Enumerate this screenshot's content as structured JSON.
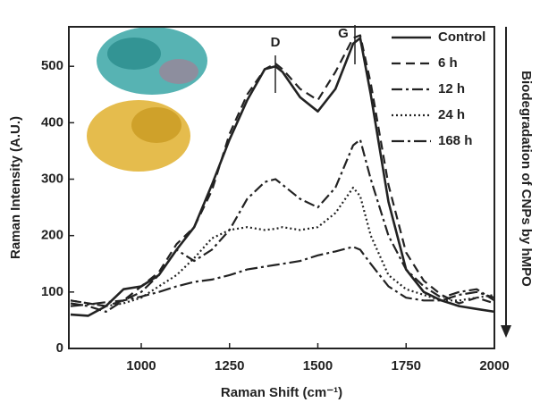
{
  "chart_data": {
    "type": "line",
    "x_label": "Raman Shift (cm⁻¹)",
    "y_label": "Raman Intensity (A.U.)",
    "annotations": [
      "D",
      "G"
    ],
    "side_note": "Biodegradation of CNPs by hMPO",
    "xlim": [
      795,
      2000
    ],
    "ylim": [
      0,
      570
    ],
    "xticks": [
      1000,
      1250,
      1500,
      1750,
      2000
    ],
    "yticks": [
      0,
      100,
      200,
      300,
      400,
      500
    ],
    "grid": false,
    "legend": "top-right",
    "x": [
      800,
      850,
      900,
      950,
      1000,
      1050,
      1100,
      1150,
      1200,
      1250,
      1300,
      1350,
      1380,
      1400,
      1450,
      1500,
      1550,
      1600,
      1620,
      1650,
      1700,
      1750,
      1800,
      1850,
      1900,
      1950,
      2000
    ],
    "series": [
      {
        "name": "Control",
        "color": "#222222",
        "dash": "none",
        "width": 2.6,
        "values": [
          60,
          58,
          75,
          105,
          110,
          130,
          175,
          215,
          290,
          370,
          440,
          495,
          500,
          490,
          445,
          420,
          460,
          540,
          550,
          450,
          260,
          140,
          100,
          85,
          75,
          70,
          65
        ]
      },
      {
        "name": "6 h",
        "color": "#222222",
        "dash": "10,6",
        "width": 2.2,
        "values": [
          85,
          80,
          75,
          85,
          110,
          135,
          185,
          215,
          280,
          380,
          450,
          495,
          505,
          495,
          460,
          440,
          490,
          550,
          555,
          470,
          290,
          170,
          120,
          95,
          80,
          90,
          80
        ]
      },
      {
        "name": "12 h",
        "color": "#222222",
        "dash": "12,4,3,4",
        "width": 2.2,
        "values": [
          80,
          75,
          65,
          85,
          100,
          130,
          175,
          155,
          175,
          210,
          265,
          295,
          300,
          290,
          265,
          250,
          285,
          360,
          370,
          300,
          200,
          140,
          110,
          90,
          100,
          105,
          85
        ]
      },
      {
        "name": "24 h",
        "color": "#222222",
        "dash": "2,3",
        "width": 2.2,
        "values": [
          85,
          80,
          75,
          80,
          90,
          110,
          130,
          160,
          195,
          210,
          215,
          210,
          212,
          215,
          210,
          215,
          240,
          285,
          270,
          200,
          130,
          105,
          95,
          85,
          85,
          90,
          95
        ]
      },
      {
        "name": "168 h",
        "color": "#222222",
        "dash": "14,4,3,4",
        "width": 2.2,
        "values": [
          75,
          78,
          82,
          85,
          92,
          100,
          110,
          118,
          122,
          130,
          140,
          145,
          148,
          150,
          155,
          165,
          172,
          180,
          175,
          150,
          110,
          90,
          85,
          85,
          95,
          100,
          90
        ]
      }
    ]
  }
}
